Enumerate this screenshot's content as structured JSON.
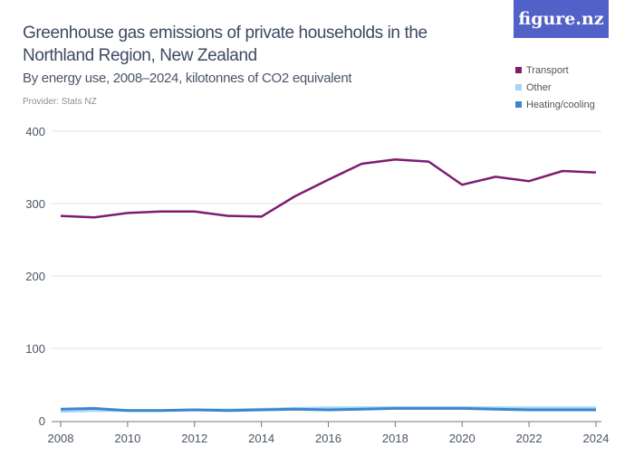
{
  "title": "Greenhouse gas emissions of private households in the Northland Region, New Zealand",
  "subtitle": "By energy use, 2008–2024, kilotonnes of CO2 equivalent",
  "provider": "Provider: Stats NZ",
  "logo": "figure.nz",
  "colors": {
    "logo_bg": "#5261c7"
  },
  "chart_data": {
    "type": "line",
    "title": "Greenhouse gas emissions of private households in the Northland Region, New Zealand",
    "x": [
      2008,
      2009,
      2010,
      2011,
      2012,
      2013,
      2014,
      2015,
      2016,
      2017,
      2018,
      2019,
      2020,
      2021,
      2022,
      2023,
      2024
    ],
    "xticks": [
      "2008",
      "2010",
      "2012",
      "2014",
      "2016",
      "2018",
      "2020",
      "2022",
      "2024"
    ],
    "yticks": [
      "0",
      "100",
      "200",
      "300",
      "400"
    ],
    "ylim": [
      0,
      400
    ],
    "grid": true,
    "legend_position": "top-right",
    "series": [
      {
        "name": "Transport",
        "color": "#7e1b73",
        "values": [
          283,
          281,
          287,
          289,
          289,
          283,
          282,
          310,
          333,
          355,
          361,
          358,
          326,
          337,
          331,
          345,
          343
        ]
      },
      {
        "name": "Other",
        "color": "#a9d4f5",
        "values": [
          13,
          14,
          14,
          14,
          15,
          15,
          16,
          17,
          18,
          18,
          18,
          18,
          18,
          18,
          18,
          18,
          18
        ]
      },
      {
        "name": "Heating/cooling",
        "color": "#3a87d0",
        "values": [
          16,
          17,
          14,
          14,
          15,
          14,
          15,
          16,
          15,
          16,
          17,
          17,
          17,
          16,
          15,
          15,
          15
        ]
      }
    ]
  }
}
